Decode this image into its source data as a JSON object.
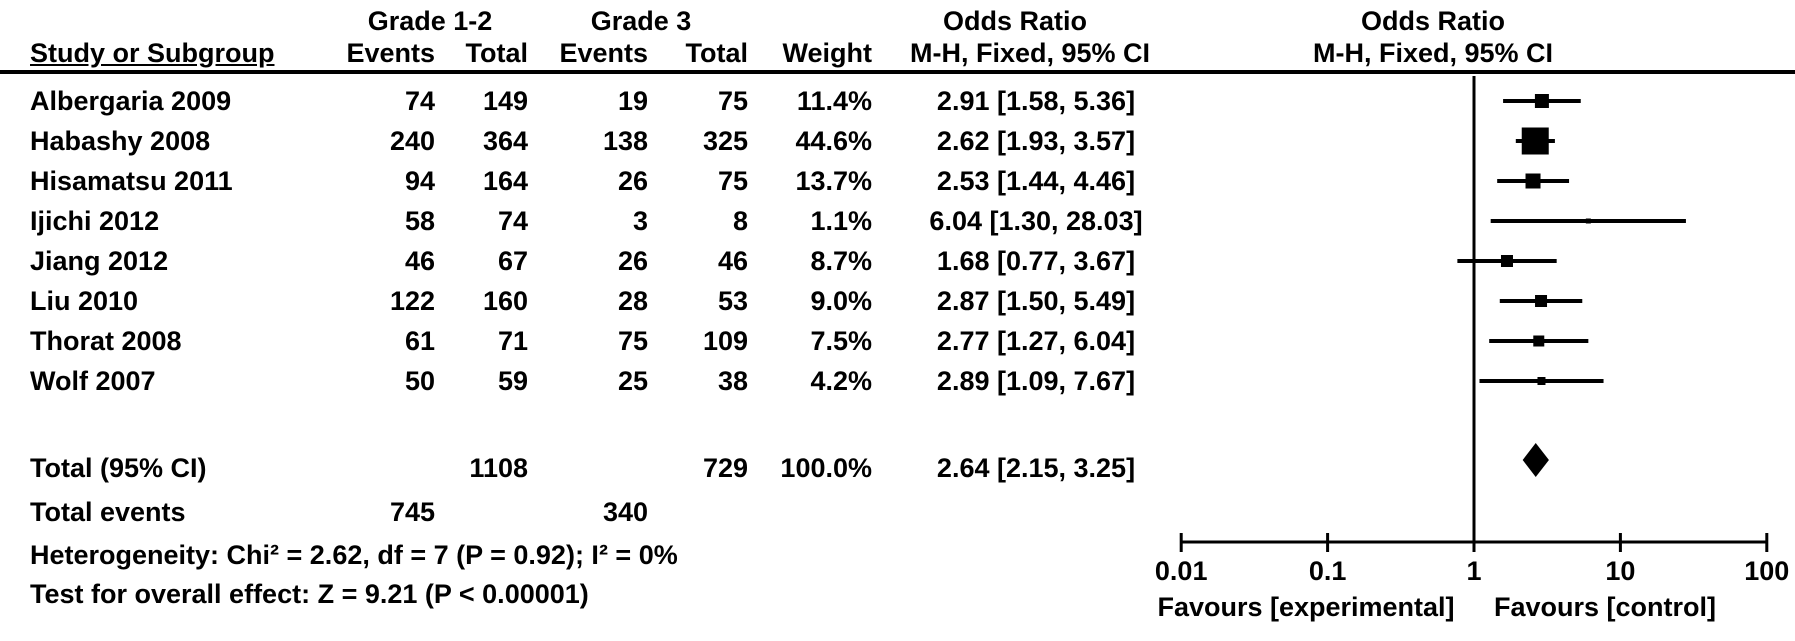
{
  "figure": {
    "header": {
      "study_col": "Study or Subgroup",
      "group1_title": "Grade 1-2",
      "group2_title": "Grade 3",
      "events_col": "Events",
      "total_col": "Total",
      "weight_col": "Weight",
      "or_col_title": "Odds Ratio",
      "or_col_subtitle": "M-H, Fixed, 95% CI",
      "plot_col_title": "Odds Ratio",
      "plot_col_subtitle": "M-H, Fixed, 95% CI"
    },
    "studies": [
      {
        "name": "Albergaria 2009",
        "g12_events": "74",
        "g12_total": "149",
        "g3_events": "19",
        "g3_total": "75",
        "weight": "11.4%",
        "or_ci_text": "2.91 [1.58, 5.36]"
      },
      {
        "name": "Habashy 2008",
        "g12_events": "240",
        "g12_total": "364",
        "g3_events": "138",
        "g3_total": "325",
        "weight": "44.6%",
        "or_ci_text": "2.62 [1.93, 3.57]"
      },
      {
        "name": "Hisamatsu 2011",
        "g12_events": "94",
        "g12_total": "164",
        "g3_events": "26",
        "g3_total": "75",
        "weight": "13.7%",
        "or_ci_text": "2.53 [1.44, 4.46]"
      },
      {
        "name": "Ijichi 2012",
        "g12_events": "58",
        "g12_total": "74",
        "g3_events": "3",
        "g3_total": "8",
        "weight": "1.1%",
        "or_ci_text": "6.04 [1.30, 28.03]"
      },
      {
        "name": "Jiang 2012",
        "g12_events": "46",
        "g12_total": "67",
        "g3_events": "26",
        "g3_total": "46",
        "weight": "8.7%",
        "or_ci_text": "1.68 [0.77, 3.67]"
      },
      {
        "name": "Liu 2010",
        "g12_events": "122",
        "g12_total": "160",
        "g3_events": "28",
        "g3_total": "53",
        "weight": "9.0%",
        "or_ci_text": "2.87 [1.50, 5.49]"
      },
      {
        "name": "Thorat 2008",
        "g12_events": "61",
        "g12_total": "71",
        "g3_events": "75",
        "g3_total": "109",
        "weight": "7.5%",
        "or_ci_text": "2.77 [1.27, 6.04]"
      },
      {
        "name": "Wolf 2007",
        "g12_events": "50",
        "g12_total": "59",
        "g3_events": "25",
        "g3_total": "38",
        "weight": "4.2%",
        "or_ci_text": "2.89 [1.09, 7.67]"
      }
    ],
    "totals": {
      "label": "Total (95% CI)",
      "grade12_total": "1108",
      "grade3_total": "729",
      "weight": "100.0%",
      "or_ci_text": "2.64 [2.15, 3.25]",
      "events_label": "Total events",
      "grade12_events": "745",
      "grade3_events": "340"
    },
    "footnotes": {
      "heterogeneity": "Heterogeneity: Chi² = 2.62, df = 7 (P = 0.92); I² = 0%",
      "overall_effect": "Test for overall effect: Z = 9.21 (P < 0.00001)"
    }
  },
  "chart_data": {
    "type": "scatter",
    "subtype": "forest-plot",
    "effect_measure": "Odds Ratio (M-H, Fixed, 95% CI)",
    "x_scale": "log10",
    "x_range": [
      0.01,
      100
    ],
    "x_ticks": [
      0.01,
      0.1,
      1,
      10,
      100
    ],
    "null_line": 1,
    "x_axis_left_label": "Favours [experimental]",
    "x_axis_right_label": "Favours [control]",
    "marker_color": "#000000",
    "studies": [
      {
        "name": "Albergaria 2009",
        "or": 2.91,
        "ci_low": 1.58,
        "ci_high": 5.36,
        "weight_pct": 11.4
      },
      {
        "name": "Habashy 2008",
        "or": 2.62,
        "ci_low": 1.93,
        "ci_high": 3.57,
        "weight_pct": 44.6
      },
      {
        "name": "Hisamatsu 2011",
        "or": 2.53,
        "ci_low": 1.44,
        "ci_high": 4.46,
        "weight_pct": 13.7
      },
      {
        "name": "Ijichi 2012",
        "or": 6.04,
        "ci_low": 1.3,
        "ci_high": 28.03,
        "weight_pct": 1.1
      },
      {
        "name": "Jiang 2012",
        "or": 1.68,
        "ci_low": 0.77,
        "ci_high": 3.67,
        "weight_pct": 8.7
      },
      {
        "name": "Liu 2010",
        "or": 2.87,
        "ci_low": 1.5,
        "ci_high": 5.49,
        "weight_pct": 9.0
      },
      {
        "name": "Thorat 2008",
        "or": 2.77,
        "ci_low": 1.27,
        "ci_high": 6.04,
        "weight_pct": 7.5
      },
      {
        "name": "Wolf 2007",
        "or": 2.89,
        "ci_low": 1.09,
        "ci_high": 7.67,
        "weight_pct": 4.2
      }
    ],
    "total": {
      "label": "Total (95% CI)",
      "or": 2.64,
      "ci_low": 2.15,
      "ci_high": 3.25,
      "weight_pct": 100.0
    }
  }
}
